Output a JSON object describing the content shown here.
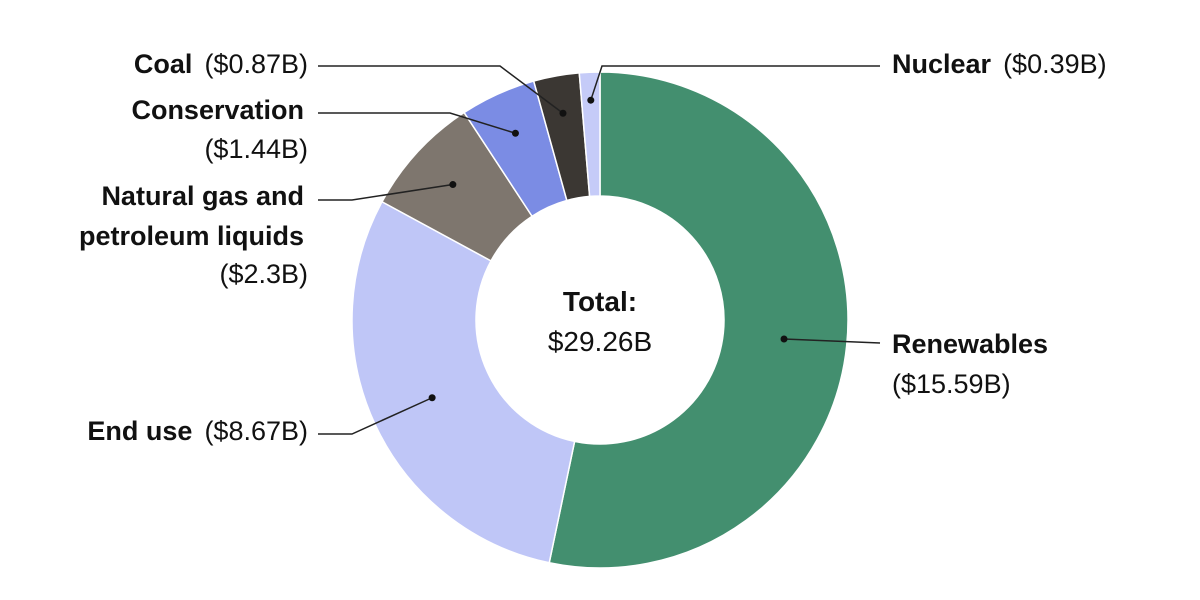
{
  "chart_data": {
    "type": "pie",
    "variant": "donut",
    "center": {
      "title": "Total:",
      "value": "$29.26B"
    },
    "slices": [
      {
        "name": "Renewables",
        "value": 15.59,
        "value_label": "($15.59B)",
        "color": "#438f6f"
      },
      {
        "name": "End use",
        "value": 8.67,
        "value_label": "($8.67B)",
        "color": "#bfc6f7"
      },
      {
        "name": "Natural gas and petroleum liquids",
        "value": 2.3,
        "value_label": "($2.3B)",
        "color": "#7e766e"
      },
      {
        "name": "Conservation",
        "value": 1.44,
        "value_label": "($1.44B)",
        "color": "#7b8ce4"
      },
      {
        "name": "Coal",
        "value": 0.87,
        "value_label": "($0.87B)",
        "color": "#3b3733"
      },
      {
        "name": "Nuclear",
        "value": 0.39,
        "value_label": "($0.39B)",
        "color": "#c5cbf8"
      }
    ]
  }
}
